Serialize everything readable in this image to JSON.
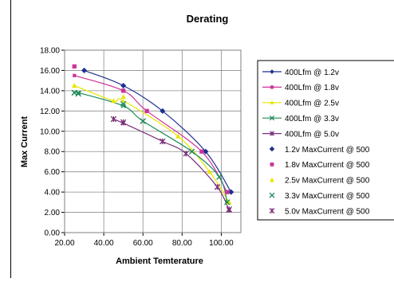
{
  "chart_data": {
    "type": "line",
    "title": "Derating",
    "xlabel": "Ambient Temterature",
    "ylabel": "Max Current",
    "xlim": [
      20,
      110
    ],
    "ylim": [
      0,
      18
    ],
    "x_ticks": [
      "20.00",
      "40.00",
      "60.00",
      "80.00",
      "100.00"
    ],
    "y_ticks": [
      "0.00",
      "2.00",
      "4.00",
      "6.00",
      "8.00",
      "10.00",
      "12.00",
      "14.00",
      "16.00",
      "18.00"
    ],
    "grid": true,
    "legend_position": "right",
    "series": [
      {
        "name": "400Lfm @ 1.2v",
        "kind": "line",
        "marker": "diamond",
        "color": "#1f2f8f",
        "x": [
          30,
          50,
          70,
          92,
          105
        ],
        "y": [
          16.0,
          14.5,
          12.0,
          8.0,
          4.0
        ]
      },
      {
        "name": "400Lfm @ 1.8v",
        "kind": "line",
        "marker": "square",
        "color": "#cc3399",
        "x": [
          25,
          50,
          62,
          90,
          103
        ],
        "y": [
          15.5,
          14.0,
          12.0,
          8.0,
          4.0
        ]
      },
      {
        "name": "400Lfm @ 2.5v",
        "kind": "line",
        "marker": "triangle",
        "color": "#e6e600",
        "x": [
          25,
          45,
          50,
          78,
          94,
          104
        ],
        "y": [
          14.5,
          13.0,
          13.0,
          9.5,
          6.0,
          3.0
        ]
      },
      {
        "name": "400Lfm @ 3.3v",
        "kind": "line",
        "marker": "x",
        "color": "#1f8a5a",
        "x": [
          25,
          27,
          50,
          60,
          85,
          99,
          103
        ],
        "y": [
          13.8,
          13.8,
          12.5,
          11.0,
          8.0,
          5.5,
          3.0
        ]
      },
      {
        "name": "400Lfm @ 5.0v",
        "kind": "line",
        "marker": "asterisk",
        "color": "#7a2f7a",
        "x": [
          45,
          50,
          70,
          82,
          98,
          104
        ],
        "y": [
          11.2,
          10.8,
          9.0,
          7.8,
          4.5,
          2.2
        ]
      },
      {
        "name": "1.2v MaxCurrent @ 500",
        "kind": "points",
        "marker": "diamond",
        "color": "#1f2f8f",
        "x": [
          30,
          50,
          70,
          92,
          105
        ],
        "y": [
          16.0,
          14.5,
          12.0,
          8.0,
          4.0
        ]
      },
      {
        "name": "1.8v MaxCurrent @ 500",
        "kind": "points",
        "marker": "square",
        "color": "#cc3399",
        "x": [
          25,
          50,
          62,
          90,
          103
        ],
        "y": [
          16.4,
          14.0,
          12.0,
          8.0,
          4.0
        ]
      },
      {
        "name": "2.5v MaxCurrent @ 500",
        "kind": "points",
        "marker": "triangle",
        "color": "#e6e600",
        "x": [
          25,
          45,
          50,
          78,
          94,
          104
        ],
        "y": [
          14.5,
          13.0,
          13.4,
          9.5,
          6.0,
          3.0
        ]
      },
      {
        "name": "3.3v MaxCurrent @ 500",
        "kind": "points",
        "marker": "x",
        "color": "#1f8a5a",
        "x": [
          25,
          27,
          50,
          60,
          85,
          99,
          103
        ],
        "y": [
          13.8,
          13.7,
          12.7,
          11.0,
          8.0,
          5.5,
          3.0
        ]
      },
      {
        "name": "5.0v MaxCurrent @ 500",
        "kind": "points",
        "marker": "asterisk",
        "color": "#7a2f7a",
        "x": [
          45,
          50,
          70,
          82,
          98,
          104
        ],
        "y": [
          11.2,
          10.9,
          9.0,
          7.8,
          4.5,
          2.3
        ]
      }
    ]
  }
}
